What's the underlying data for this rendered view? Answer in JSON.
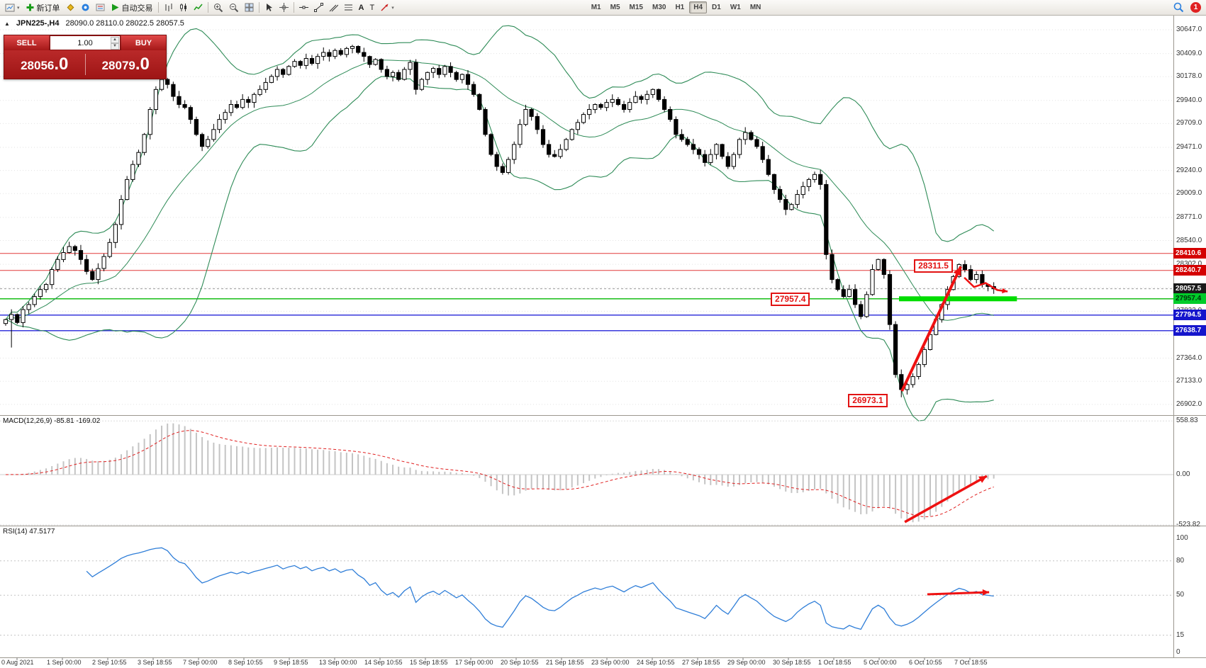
{
  "toolbar": {
    "new_order_label": "新订单",
    "autotrading_label": "自动交易",
    "timeframes": [
      "M1",
      "M5",
      "M15",
      "M30",
      "H1",
      "H4",
      "D1",
      "W1",
      "MN"
    ],
    "active_timeframe": "H4",
    "notification_count": "1",
    "text_tool_label": "A",
    "label_tool_label": "T"
  },
  "icons": {
    "collapse": "▲",
    "spin_up": "▲",
    "spin_down": "▼",
    "caret": "▾"
  },
  "chart": {
    "symbol": "JPN225-,H4",
    "ohlc": "28090.0 28110.0 28022.5 28057.5",
    "trade_panel": {
      "sell_label": "SELL",
      "buy_label": "BUY",
      "volume": "1.00",
      "sell_price_main": "28056",
      "sell_price_frac": ".0",
      "buy_price_main": "28079",
      "buy_price_frac": ".0"
    }
  },
  "macd": {
    "label": "MACD(12,26,9) -85.81 -169.02",
    "axis": [
      {
        "v": 558.83,
        "label": "558.83"
      },
      {
        "v": 0,
        "label": "0.00"
      },
      {
        "v": -523.82,
        "label": "-523.82"
      }
    ]
  },
  "rsi": {
    "label": "RSI(14) 47.5177",
    "levels": [
      80,
      50,
      15
    ],
    "axis": [
      {
        "v": 100,
        "label": "100"
      },
      {
        "v": 80,
        "label": "80"
      },
      {
        "v": 50,
        "label": "50"
      },
      {
        "v": 15,
        "label": "15"
      },
      {
        "v": 0,
        "label": "0"
      }
    ]
  },
  "chart_data": {
    "type": "candlestick",
    "symbol": "JPN225-",
    "timeframe": "H4",
    "price_range": {
      "min": 26830,
      "max": 30760
    },
    "price_axis_ticks": [
      30647,
      30409,
      30178,
      29940,
      29709,
      29471,
      29240,
      29009,
      28771,
      28540,
      28302,
      28071,
      27833,
      27602,
      27364,
      27133,
      26902
    ],
    "closes": [
      27750,
      27800,
      27720,
      27850,
      27900,
      27980,
      28050,
      28100,
      28250,
      28350,
      28420,
      28480,
      28440,
      28350,
      28230,
      28150,
      28260,
      28380,
      28520,
      28700,
      28950,
      29150,
      29300,
      29420,
      29600,
      29850,
      30050,
      30150,
      30100,
      29980,
      29900,
      29870,
      29750,
      29600,
      29480,
      29550,
      29650,
      29750,
      29820,
      29900,
      29870,
      29950,
      29920,
      30000,
      30050,
      30120,
      30180,
      30250,
      30200,
      30280,
      30330,
      30290,
      30360,
      30310,
      30380,
      30420,
      30380,
      30440,
      30400,
      30460,
      30480,
      30420,
      30380,
      30300,
      30350,
      30250,
      30180,
      30220,
      30150,
      30250,
      30320,
      30050,
      30150,
      30220,
      30260,
      30200,
      30280,
      30220,
      30150,
      30200,
      30100,
      30000,
      29850,
      29600,
      29400,
      29280,
      29220,
      29350,
      29500,
      29700,
      29850,
      29780,
      29650,
      29500,
      29400,
      29380,
      29450,
      29550,
      29650,
      29720,
      29800,
      29850,
      29900,
      29870,
      29920,
      29950,
      29900,
      29850,
      29920,
      29980,
      29950,
      30000,
      30050,
      29950,
      29850,
      29750,
      29600,
      29550,
      29500,
      29450,
      29400,
      29320,
      29400,
      29500,
      29380,
      29280,
      29400,
      29550,
      29620,
      29550,
      29480,
      29350,
      29200,
      29050,
      28950,
      28850,
      28900,
      29000,
      29080,
      29150,
      29200,
      29100,
      28400,
      28150,
      28050,
      27980,
      28050,
      27900,
      27780,
      28000,
      28250,
      28350,
      28200,
      27700,
      27200,
      27050,
      27100,
      27180,
      27300,
      27450,
      27600,
      27750,
      27900,
      28050,
      28180,
      28300,
      28250,
      28150,
      28200,
      28100,
      28080,
      28057.5
    ],
    "annotated_low": {
      "index": 155,
      "price": 26973.1
    },
    "annotated_high": {
      "index": 165,
      "price": 28311.5
    },
    "hlines": [
      {
        "price": 28410.6,
        "color": "#e23b3b",
        "width": 1,
        "tag_bg": "#d40000",
        "tag_fg": "#ffffff",
        "label": "28410.6"
      },
      {
        "price": 28240.7,
        "color": "#e23b3b",
        "width": 1,
        "tag_bg": "#d40000",
        "tag_fg": "#ffffff",
        "label": "28240.7"
      },
      {
        "price": 28057.5,
        "color": "#9a9a9a",
        "width": 1,
        "dash": "3,3",
        "tag_bg": "#1a1a1a",
        "tag_fg": "#ffffff",
        "label": "28057.5"
      },
      {
        "price": 27957.4,
        "color": "#00b800",
        "width": 1.4,
        "tag_bg": "#00cc2a",
        "tag_fg": "#00330c",
        "label": "27957.4"
      },
      {
        "price": 27794.5,
        "color": "#2525d8",
        "width": 1.4,
        "tag_bg": "#1515cc",
        "tag_fg": "#ffffff",
        "label": "27794.5"
      },
      {
        "price": 27638.7,
        "color": "#2525d8",
        "width": 1.4,
        "tag_bg": "#1515cc",
        "tag_fg": "#ffffff",
        "label": "27638.7"
      }
    ],
    "bollinger": {
      "period": 20,
      "deviation": 2,
      "color": "#2e8b57"
    },
    "dates": [
      "0 Aug 2021",
      "1 Sep 00:00",
      "2 Sep 10:55",
      "3 Sep 18:55",
      "7 Sep 00:00",
      "8 Sep 10:55",
      "9 Sep 18:55",
      "13 Sep 00:00",
      "14 Sep 10:55",
      "15 Sep 18:55",
      "17 Sep 00:00",
      "20 Sep 10:55",
      "21 Sep 18:55",
      "23 Sep 00:00",
      "24 Sep 10:55",
      "27 Sep 18:55",
      "29 Sep 00:00",
      "30 Sep 18:55",
      "1 Oct 18:55",
      "5 Oct 00:00",
      "6 Oct 10:55",
      "7 Oct 18:55"
    ],
    "drawings": {
      "green_zone": {
        "price": 27957.4,
        "from_index": 154.6,
        "to_index": 175,
        "color": "#00dd00",
        "thickness": 7
      },
      "trend_arrow": {
        "from": {
          "index": 155.1,
          "price": 27035
        },
        "to": {
          "index": 165.3,
          "price": 28280
        },
        "color": "#ee1111",
        "width": 4
      },
      "wiggle_arrow": {
        "points": [
          {
            "index": 165.9,
            "price": 28169
          },
          {
            "index": 167.6,
            "price": 28075
          },
          {
            "index": 169.6,
            "price": 28115
          },
          {
            "index": 171.6,
            "price": 28045
          },
          {
            "index": 173.4,
            "price": 28030
          }
        ],
        "color": "#ee1111",
        "width": 2.5
      },
      "macd_arrow": {
        "from": {
          "index": 155.6,
          "value": -494
        },
        "to": {
          "index": 169.8,
          "value": -15
        },
        "color": "#ee1111",
        "width": 3.5
      },
      "rsi_arrow": {
        "from": {
          "index": 159.5,
          "value": 50.8
        },
        "to": {
          "index": 170.2,
          "value": 52.6
        },
        "color": "#ee1111",
        "width": 3
      },
      "callouts": [
        {
          "text": "28311.5",
          "index": 157.2,
          "price": 28290
        },
        {
          "text": "27957.4",
          "index": 132.4,
          "price": 27957.4
        },
        {
          "text": "26973.1",
          "index": 145.8,
          "price": 26940
        }
      ]
    }
  }
}
